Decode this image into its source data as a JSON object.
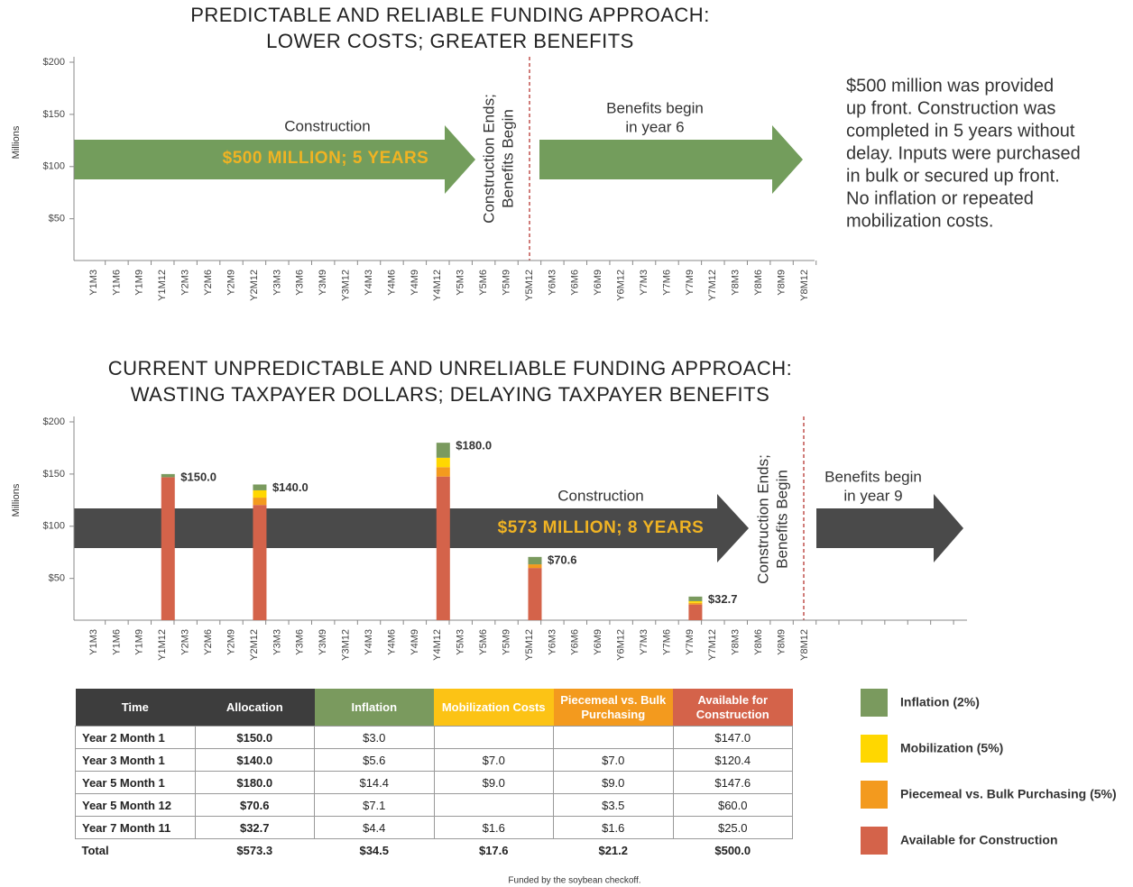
{
  "chart_data": [
    {
      "type": "bar",
      "title": [
        "PREDICTABLE AND RELIABLE FUNDING APPROACH:",
        "LOWER COSTS; GREATER BENEFITS"
      ],
      "y_label": "Millions",
      "categories": [
        "Y1M3",
        "Y1M6",
        "Y1M9",
        "Y1M12",
        "Y2M3",
        "Y2M6",
        "Y2M9",
        "Y2M12",
        "Y3M3",
        "Y3M6",
        "Y3M9",
        "Y3M12",
        "Y4M3",
        "Y4M6",
        "Y4M9",
        "Y4M12",
        "Y5M3",
        "Y5M6",
        "Y5M9",
        "Y5M12",
        "Y6M3",
        "Y6M6",
        "Y6M9",
        "Y6M12",
        "Y7M3",
        "Y7M6",
        "Y7M9",
        "Y7M12",
        "Y8M3",
        "Y8M6",
        "Y8M9",
        "Y8M12"
      ],
      "ylim": [
        10,
        200
      ],
      "yticks": [
        {
          "value": 50,
          "label": "$50"
        },
        {
          "value": 100,
          "label": "$100"
        },
        {
          "value": 150,
          "label": "$150"
        },
        {
          "value": 200,
          "label": "$200"
        }
      ],
      "annotations": [
        "Construction",
        "$500 MILLION; 5 YEARS",
        "Construction Ends;",
        "Benefits Begin",
        "Benefits begin",
        "in year 6"
      ],
      "note": [
        "$500 million was provided",
        "up front. Construction was",
        "completed in 5 years without",
        "delay. Inputs were purchased",
        "in bulk or secured up front.",
        "No inflation or repeated",
        "mobilization costs."
      ]
    },
    {
      "type": "bar",
      "title": [
        "CURRENT UNPREDICTABLE AND UNRELIABLE FUNDING APPROACH:",
        "WASTING TAXPAYER DOLLARS; DELAYING TAXPAYER BENEFITS"
      ],
      "y_label": "Millions",
      "categories": [
        "Y1M3",
        "Y1M6",
        "Y1M9",
        "Y1M12",
        "Y2M3",
        "Y2M6",
        "Y2M9",
        "Y2M12",
        "Y3M3",
        "Y3M6",
        "Y3M9",
        "Y3M12",
        "Y4M3",
        "Y4M6",
        "Y4M9",
        "Y4M12",
        "Y5M3",
        "Y5M6",
        "Y5M9",
        "Y5M12",
        "Y6M3",
        "Y6M6",
        "Y6M9",
        "Y6M12",
        "Y7M3",
        "Y7M6",
        "Y7M9",
        "Y7M12",
        "Y8M3",
        "Y8M6",
        "Y8M9",
        "Y8M12"
      ],
      "ylim": [
        10,
        200
      ],
      "yticks": [
        {
          "value": 50,
          "label": "$50"
        },
        {
          "value": 100,
          "label": "$100"
        },
        {
          "value": 150,
          "label": "$150"
        },
        {
          "value": 200,
          "label": "$200"
        }
      ],
      "series": [
        {
          "name": "Inflation (2%)",
          "color": "#7a9a5e",
          "values": [
            null,
            null,
            null,
            3,
            null,
            null,
            null,
            5.6,
            null,
            null,
            null,
            null,
            null,
            null,
            null,
            14.4,
            null,
            null,
            null,
            7.1,
            null,
            null,
            null,
            null,
            null,
            null,
            4.4,
            null,
            null,
            null,
            null,
            null
          ]
        },
        {
          "name": "Mobilization (5%)",
          "color": "#ffd700",
          "values": [
            null,
            null,
            null,
            null,
            null,
            null,
            null,
            7,
            null,
            null,
            null,
            null,
            null,
            null,
            null,
            9,
            null,
            null,
            null,
            null,
            null,
            null,
            null,
            null,
            null,
            null,
            1.6,
            null,
            null,
            null,
            null,
            null
          ]
        },
        {
          "name": "Piecemeal vs. Bulk Purchasing (5%)",
          "color": "#f39a1e",
          "values": [
            null,
            null,
            null,
            null,
            null,
            null,
            null,
            7,
            null,
            null,
            null,
            null,
            null,
            null,
            null,
            9,
            null,
            null,
            null,
            3.5,
            null,
            null,
            null,
            null,
            null,
            null,
            1.6,
            null,
            null,
            null,
            null,
            null
          ]
        },
        {
          "name": "Available for Construction",
          "color": "#d4634a",
          "values": [
            null,
            null,
            null,
            147,
            null,
            null,
            null,
            120.4,
            null,
            null,
            null,
            null,
            null,
            null,
            null,
            147.6,
            null,
            null,
            null,
            60,
            null,
            null,
            null,
            null,
            null,
            null,
            25,
            null,
            null,
            null,
            null,
            null
          ]
        }
      ],
      "totals": [
        null,
        null,
        null,
        150,
        null,
        null,
        null,
        140,
        null,
        null,
        null,
        null,
        null,
        null,
        null,
        180,
        null,
        null,
        null,
        70.6,
        null,
        null,
        null,
        null,
        null,
        null,
        32.7,
        null,
        null,
        null,
        null,
        null
      ],
      "total_labels": [
        null,
        null,
        null,
        "$150.0",
        null,
        null,
        null,
        "$140.0",
        null,
        null,
        null,
        null,
        null,
        null,
        null,
        "$180.0",
        null,
        null,
        null,
        "$70.6",
        null,
        null,
        null,
        null,
        null,
        null,
        "$32.7",
        null,
        null,
        null,
        null,
        null
      ],
      "annotations": [
        "Construction",
        "$573 MILLION; 8 YEARS",
        "Construction Ends;",
        "Benefits Begin",
        "Benefits begin",
        "in year 9"
      ]
    }
  ],
  "table": {
    "header": [
      "Time",
      "Allocation",
      "Inflation",
      "Mobilization Costs",
      "Piecemeal vs. Bulk Purchasing",
      "Available for Construction"
    ],
    "rows": [
      [
        "Year 2 Month 1",
        "$150.0",
        "$3.0",
        "",
        "",
        "$147.0"
      ],
      [
        "Year 3 Month 1",
        "$140.0",
        "$5.6",
        "$7.0",
        "$7.0",
        "$120.4"
      ],
      [
        "Year 5 Month 1",
        "$180.0",
        "$14.4",
        "$9.0",
        "$9.0",
        "$147.6"
      ],
      [
        "Year 5 Month 12",
        "$70.6",
        "$7.1",
        "",
        "$3.5",
        "$60.0"
      ],
      [
        "Year 7 Month 11",
        "$32.7",
        "$4.4",
        "$1.6",
        "$1.6",
        "$25.0"
      ],
      [
        "Total",
        "$573.3",
        "$34.5",
        "$17.6",
        "$21.2",
        "$500.0"
      ]
    ]
  },
  "footer": "Funded by the soybean checkoff."
}
